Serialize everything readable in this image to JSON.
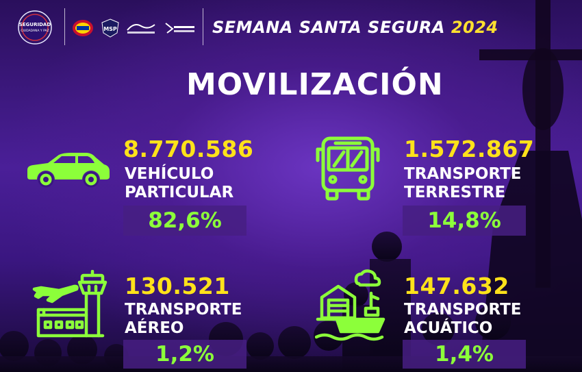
{
  "header": {
    "logos": [
      {
        "icon": "seguridad-ciudadana-logo",
        "text_lines": [
          "SEGURIDAD",
          "CIUDADANA Y PAZ"
        ]
      },
      {
        "icon": "government-seal-logo"
      },
      {
        "icon": "msp-logo",
        "text": "MSP"
      },
      {
        "icon": "territorio-insular-logo"
      },
      {
        "icon": "guarantes-de-paz-logo"
      }
    ],
    "title": "SEMANA SANTA SEGURA",
    "year": "2024"
  },
  "main_title": "MOVILIZACIÓN",
  "colors": {
    "number": "#ffe21a",
    "percent": "#8cff3a",
    "icon": "#8cff3a",
    "label": "#ffffff",
    "background": "#3a1a78"
  },
  "cards": [
    {
      "icon": "car-icon",
      "number": "8.770.586",
      "label_line1": "VEHÍCULO",
      "label_line2": "PARTICULAR",
      "percent": "82,6%"
    },
    {
      "icon": "bus-icon",
      "number": "1.572.867",
      "label_line1": "TRANSPORTE",
      "label_line2": "TERRESTRE",
      "percent": "14,8%"
    },
    {
      "icon": "airport-icon",
      "number": "130.521",
      "label_line1": "TRANSPORTE",
      "label_line2": "AÉREO",
      "percent": "1,2%"
    },
    {
      "icon": "ship-port-icon",
      "number": "147.632",
      "label_line1": "TRANSPORTE",
      "label_line2": "ACUÁTICO",
      "percent": "1,4%"
    }
  ]
}
